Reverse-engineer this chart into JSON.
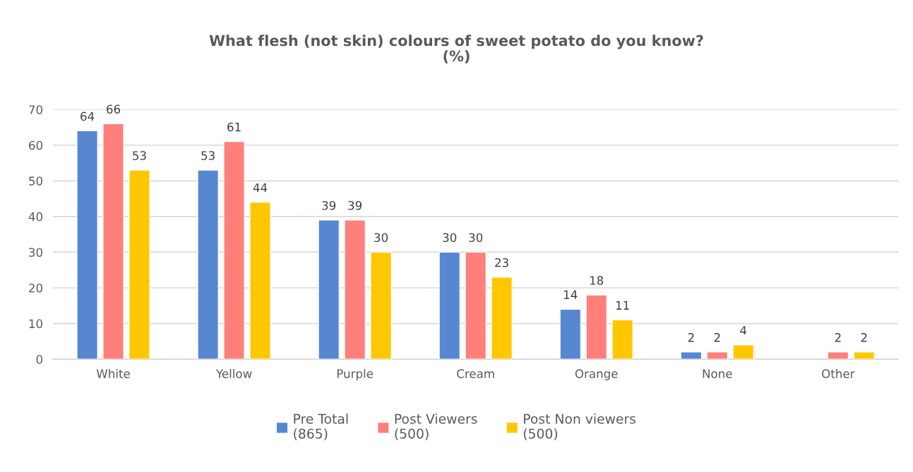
{
  "chart_data": {
    "type": "bar",
    "title": "What flesh (not skin) colours of sweet potato do you know?\n(%)",
    "categories": [
      "White",
      "Yellow",
      "Purple",
      "Cream",
      "Orange",
      "None",
      "Other"
    ],
    "series": [
      {
        "name": "Pre Total\n(865)",
        "color": "#5687d0",
        "values": [
          64,
          53,
          39,
          30,
          14,
          2,
          null
        ]
      },
      {
        "name": "Post Viewers\n(500)",
        "color": "#ff7f7b",
        "values": [
          66,
          61,
          39,
          30,
          18,
          2,
          2
        ]
      },
      {
        "name": "Post Non viewers\n(500)",
        "color": "#ffc700",
        "values": [
          53,
          44,
          30,
          23,
          11,
          4,
          2
        ]
      }
    ],
    "ylim": [
      0,
      70
    ],
    "yticks": [
      0,
      10,
      20,
      30,
      40,
      50,
      60,
      70
    ],
    "grid": "y",
    "legend": "bottom",
    "data_labels": true
  }
}
